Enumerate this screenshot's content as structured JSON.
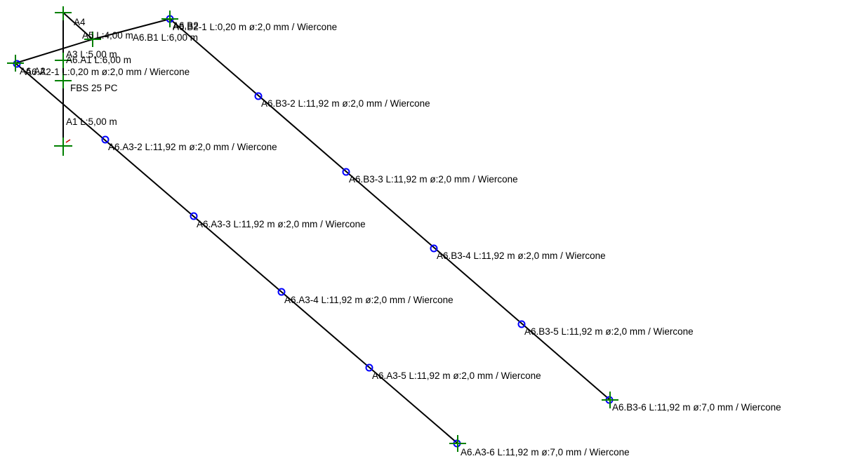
{
  "colors": {
    "background": "#ffffff",
    "pipe": "#000000",
    "node": "#0000ff",
    "marker": "#008000",
    "tick": "#cc0000"
  },
  "labels": {
    "a4": "A4",
    "a4_length": "A5 L:4,00 m",
    "a6b1_length": "A6.B1 L:6,00 m",
    "a6b2": "A6.B2",
    "a6b2_1": "A6.B2-1 L:0,20 m ø:2,0 mm / Wiercone",
    "a3_length": "A3 L:5,00 m",
    "a6a1_length": "A6.A1 L:6,00 m",
    "a6a2": "A6.A2",
    "a6a2_1": "A6.A2-1 L:0,20 m ø:2,0 mm / Wiercone",
    "device": "FBS 25 PC",
    "a1_length": "A1 L:5,00 m",
    "a3_2": "A6.A3-2 L:11,92 m ø:2,0 mm / Wiercone",
    "a3_3": "A6.A3-3 L:11,92 m ø:2,0 mm / Wiercone",
    "a3_4": "A6.A3-4 L:11,92 m ø:2,0 mm / Wiercone",
    "a3_5": "A6.A3-5 L:11,92 m ø:2,0 mm / Wiercone",
    "a3_6": "A6.A3-6 L:11,92 m ø:7,0 mm / Wiercone",
    "b3_2": "A6.B3-2 L:11,92 m ø:2,0 mm / Wiercone",
    "b3_3": "A6.B3-3 L:11,92 m ø:2,0 mm / Wiercone",
    "b3_4": "A6.B3-4 L:11,92 m ø:2,0 mm / Wiercone",
    "b3_5": "A6.B3-5 L:11,92 m ø:2,0 mm / Wiercone",
    "b3_6": "A6.B3-6 L:11,92 m ø:7,0 mm / Wiercone"
  }
}
